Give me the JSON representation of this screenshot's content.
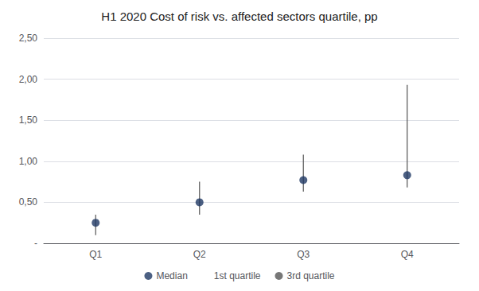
{
  "chart_data": {
    "type": "scatter",
    "title": "H1 2020 Cost of risk vs. affected sectors quartile, pp",
    "categories": [
      "Q1",
      "Q2",
      "Q3",
      "Q4"
    ],
    "series": [
      {
        "name": "Median",
        "type": "scatter",
        "marker": "circle",
        "color": "#1f3864",
        "values": [
          0.25,
          0.5,
          0.77,
          0.83
        ]
      },
      {
        "name": "1st quartile",
        "type": "range",
        "marker": "none",
        "color": "#555555",
        "values": [
          0.1,
          0.35,
          0.63,
          0.68
        ]
      },
      {
        "name": "3rd quartile",
        "type": "range",
        "marker": "dot",
        "color": "#555555",
        "values": [
          0.35,
          0.75,
          1.08,
          1.93
        ]
      }
    ],
    "ylim": [
      0,
      2.5
    ],
    "yticks": [
      {
        "value": 0,
        "label": "-"
      },
      {
        "value": 0.5,
        "label": "0,50"
      },
      {
        "value": 1.0,
        "label": "1,00"
      },
      {
        "value": 1.5,
        "label": "1,50"
      },
      {
        "value": 2.0,
        "label": "2,00"
      },
      {
        "value": 2.5,
        "label": "2,50"
      }
    ],
    "grid": true,
    "legend": "bottom"
  }
}
